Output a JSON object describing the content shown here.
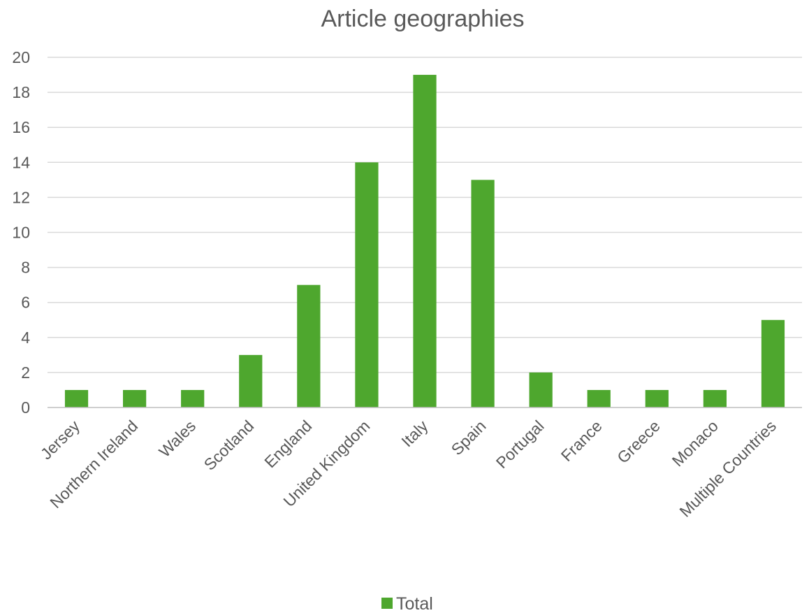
{
  "chart_data": {
    "type": "bar",
    "title": "Article geographies",
    "categories": [
      "Jersey",
      "Northern Ireland",
      "Wales",
      "Scotland",
      "England",
      "United Kingdom",
      "Italy",
      "Spain",
      "Portugal",
      "France",
      "Greece",
      "Monaco",
      "Multiple Countries"
    ],
    "series": [
      {
        "name": "Total",
        "values": [
          1,
          1,
          1,
          3,
          7,
          14,
          19,
          13,
          2,
          1,
          1,
          1,
          5
        ],
        "color": "#4ea72e"
      }
    ],
    "ylim": [
      0,
      20
    ],
    "yticks": [
      "0",
      "2",
      "4",
      "6",
      "8",
      "10",
      "12",
      "14",
      "16",
      "18",
      "20"
    ],
    "grid": true,
    "legend": "bottom"
  }
}
